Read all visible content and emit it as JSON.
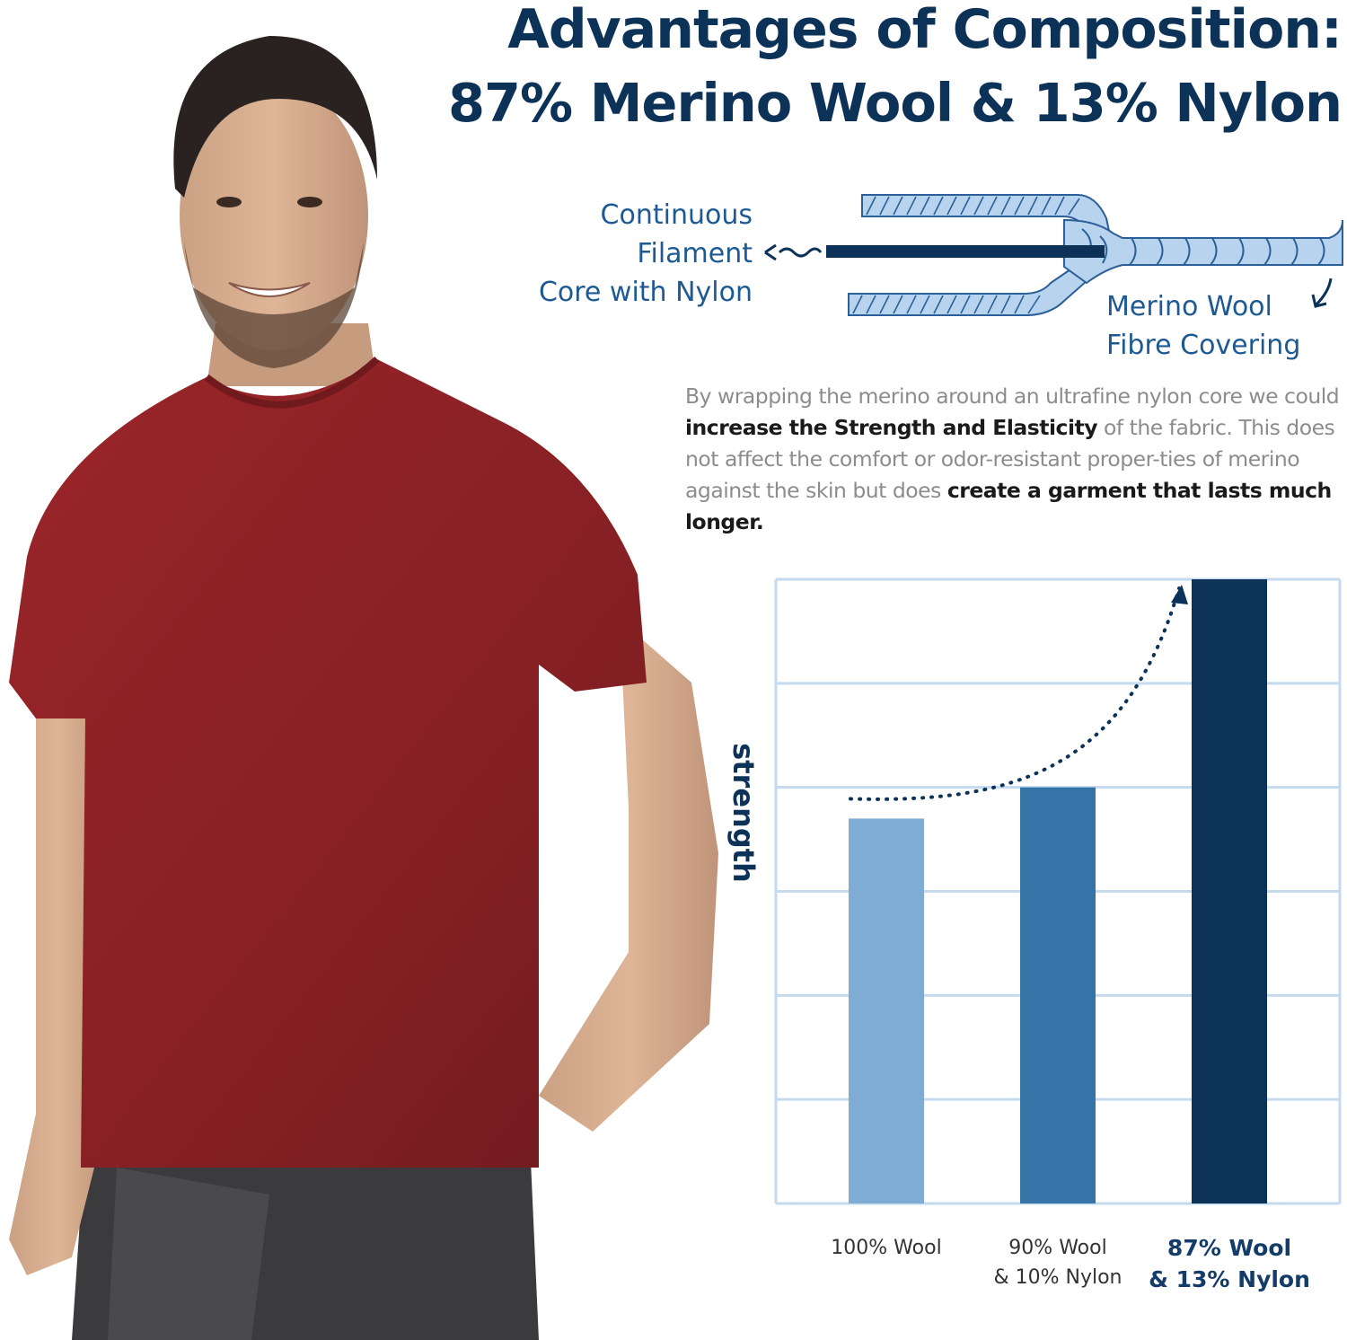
{
  "headline": {
    "line1": "Advantages of Composition:",
    "line2": "87% Merino Wool & 13% Nylon"
  },
  "diagram": {
    "core_label": [
      "Continuous",
      "Filament",
      "Core with Nylon"
    ],
    "cover_label": [
      "Merino Wool",
      "Fibre Covering"
    ]
  },
  "description": [
    {
      "text": "By wrapping the merino around an ultrafine nylon core we could ",
      "bold": false
    },
    {
      "text": "increase the Strength and Elasticity",
      "bold": true
    },
    {
      "text": " of the fabric. This does not affect the comfort or odor-resistant proper-ties of merino against the skin but does ",
      "bold": false
    },
    {
      "text": "create a garment that lasts much longer.",
      "bold": true
    }
  ],
  "colors": {
    "navy": "#0d3258",
    "accent_blue": "#1d5a94",
    "shirt": "#8a1f24",
    "grid": "#c5daef"
  },
  "chart_data": {
    "type": "bar",
    "ylabel": "strength",
    "categories": [
      "100% Wool",
      "90% Wool\n& 10% Nylon",
      "87% Wool\n& 13% Nylon"
    ],
    "values": [
      3.7,
      4.0,
      6.0
    ],
    "ylim": [
      0,
      6
    ],
    "grid": true,
    "highlight_index": 2,
    "bar_colors": [
      "#7eacd4",
      "#3673a7",
      "#0d3258"
    ],
    "trend_arrow": true
  }
}
